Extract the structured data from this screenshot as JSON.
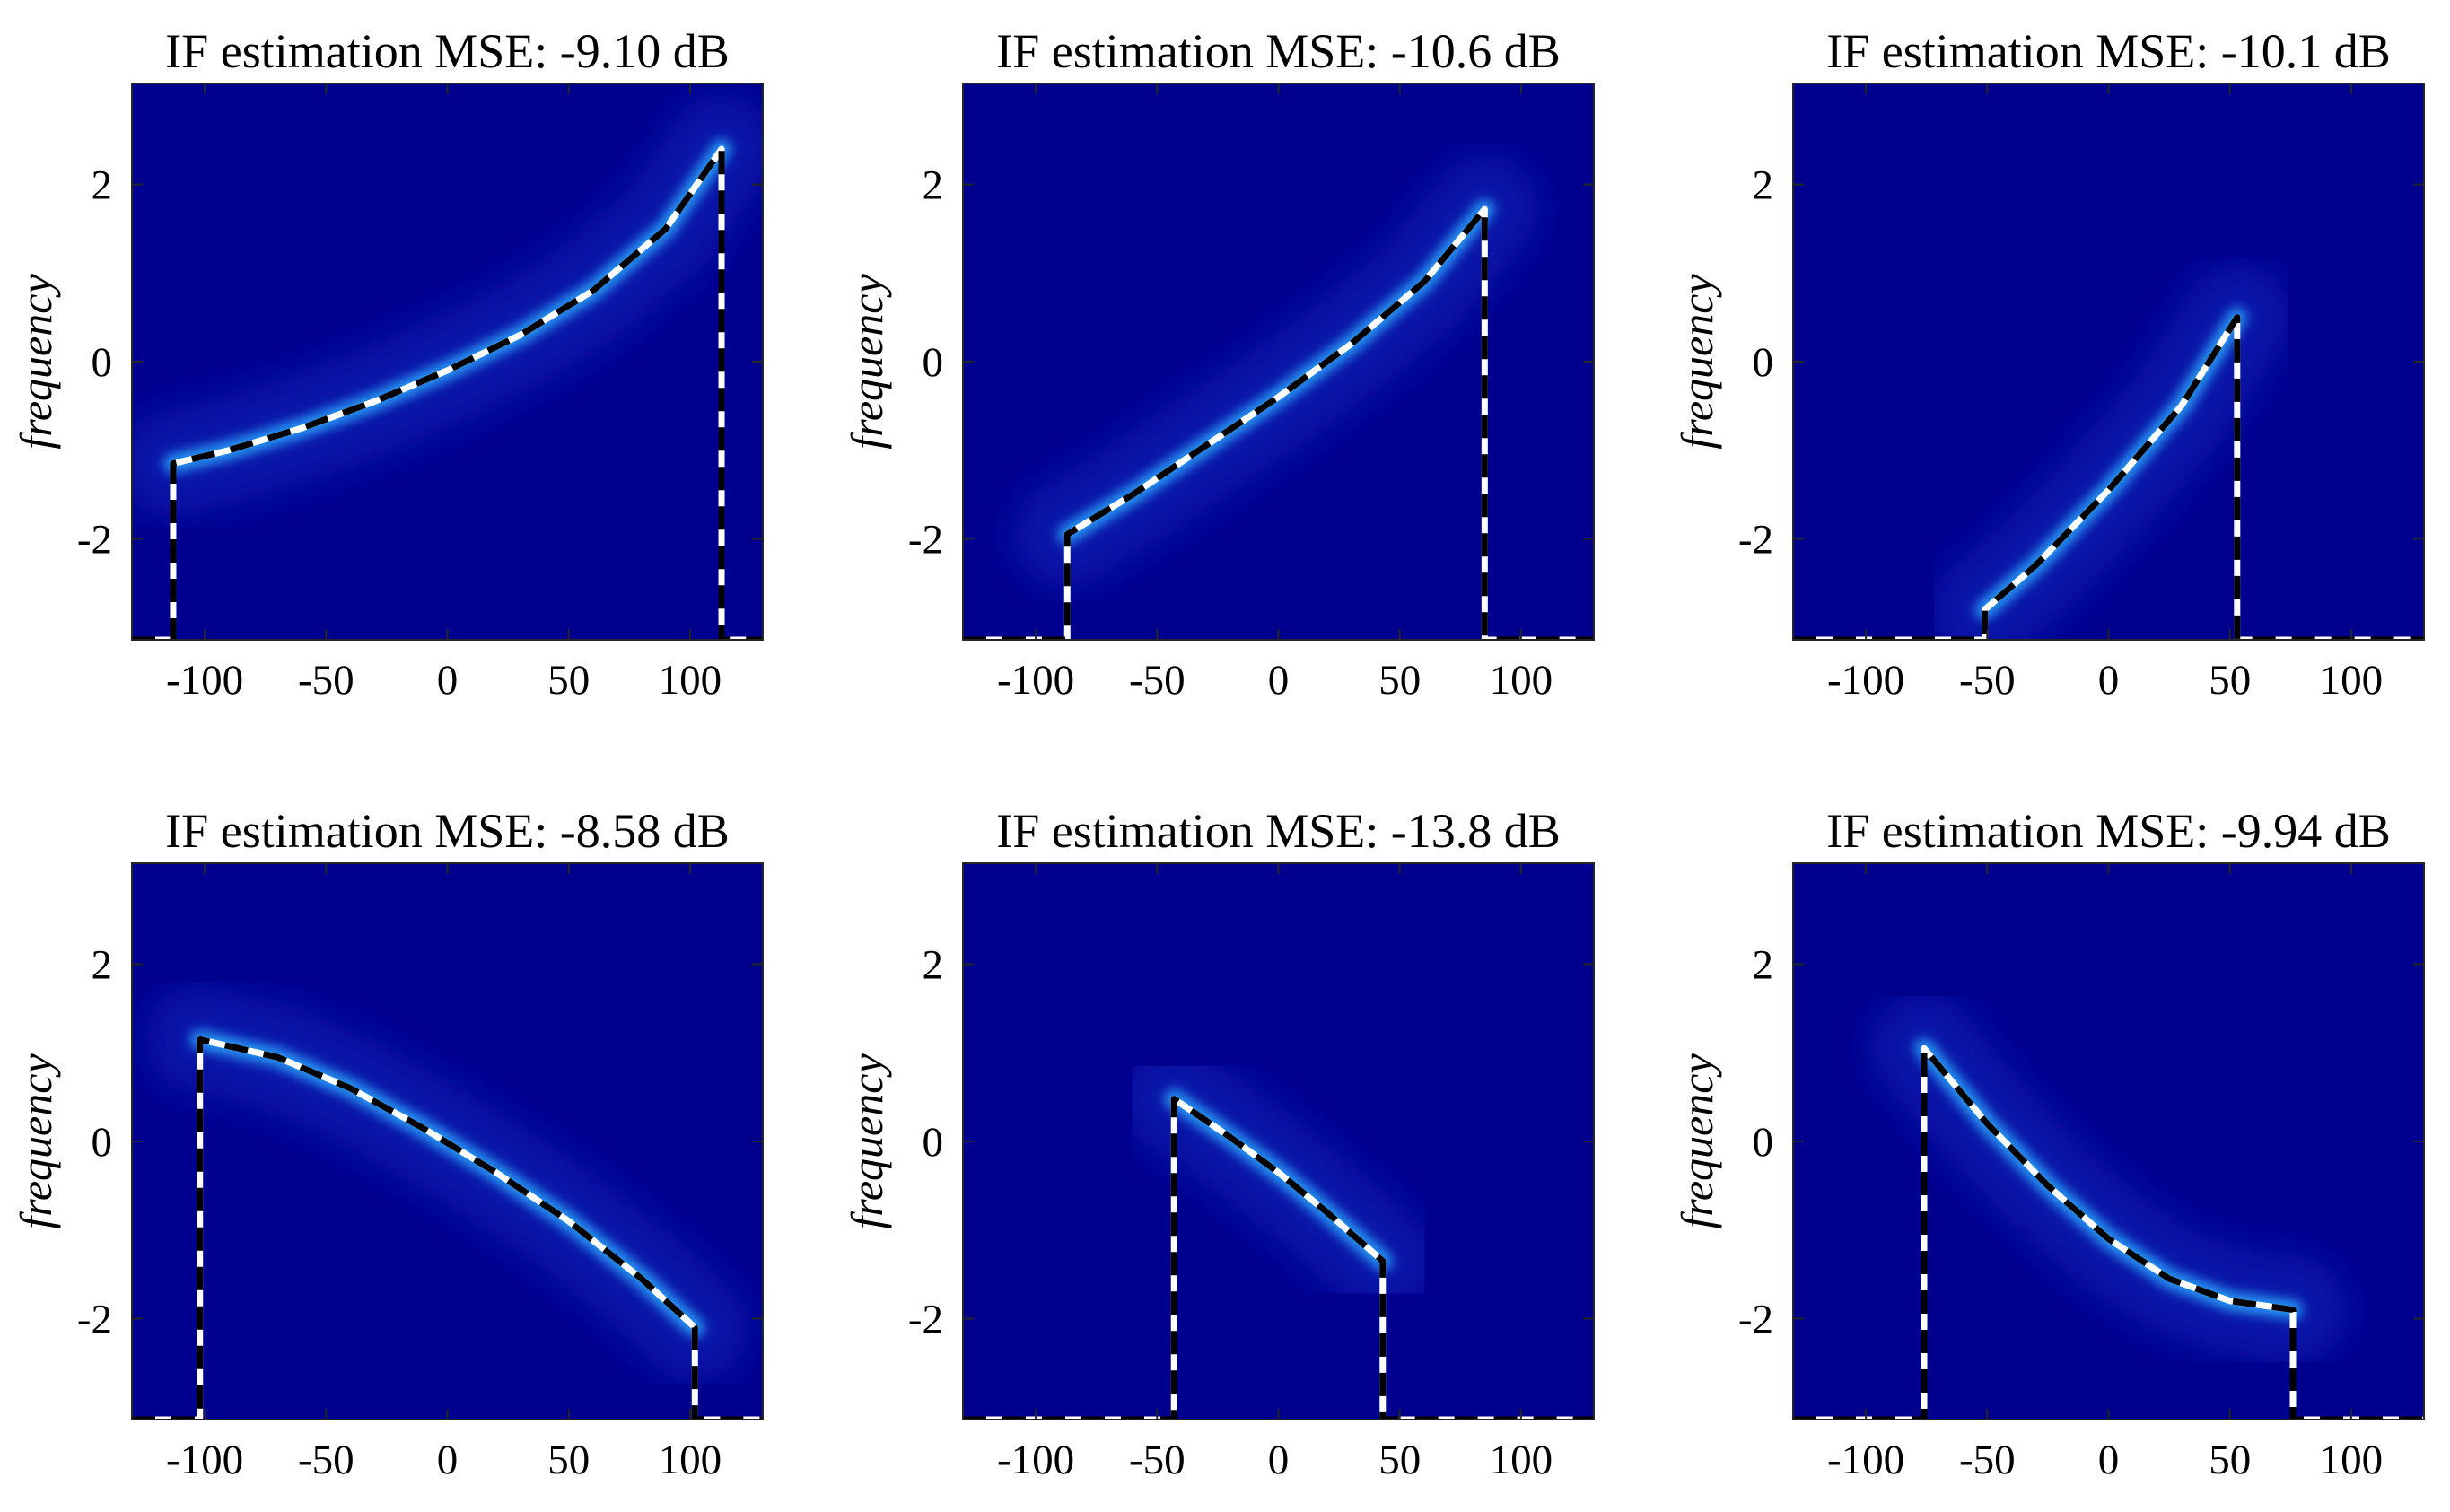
{
  "chart_data": [
    {
      "type": "line",
      "title": "IF estimation MSE: -9.10 dB",
      "xlabel": "",
      "ylabel": "frequency",
      "xlim": [
        -130,
        130
      ],
      "ylim": [
        -3.14,
        3.14
      ],
      "xticks": [
        "-100",
        "-50",
        "0",
        "50",
        "100"
      ],
      "yticks": [
        "-2",
        "0",
        "2"
      ],
      "background_color": "#00008f",
      "series": [
        {
          "name": "estimated IF",
          "style": "black-white dashed",
          "x": [
            -130,
            -113,
            -113,
            -90,
            -60,
            -30,
            0,
            30,
            60,
            90,
            113,
            113,
            130
          ],
          "y": [
            -3.14,
            -3.14,
            -1.15,
            -1.0,
            -0.75,
            -0.45,
            -0.1,
            0.3,
            0.8,
            1.5,
            2.4,
            -3.14,
            -3.14
          ]
        }
      ]
    },
    {
      "type": "line",
      "title": "IF estimation MSE: -10.6 dB",
      "xlabel": "",
      "ylabel": "frequency",
      "xlim": [
        -130,
        130
      ],
      "ylim": [
        -3.14,
        3.14
      ],
      "xticks": [
        "-100",
        "-50",
        "0",
        "50",
        "100"
      ],
      "yticks": [
        "-2",
        "0",
        "2"
      ],
      "background_color": "#00008f",
      "series": [
        {
          "name": "estimated IF",
          "style": "black-white dashed",
          "x": [
            -130,
            -87,
            -87,
            -60,
            -30,
            0,
            30,
            60,
            85,
            85,
            130
          ],
          "y": [
            -3.14,
            -3.14,
            -1.95,
            -1.5,
            -0.95,
            -0.4,
            0.2,
            0.9,
            1.72,
            -3.14,
            -3.14
          ]
        }
      ]
    },
    {
      "type": "line",
      "title": "IF estimation MSE: -10.1 dB",
      "xlabel": "",
      "ylabel": "frequency",
      "xlim": [
        -130,
        130
      ],
      "ylim": [
        -3.14,
        3.14
      ],
      "xticks": [
        "-100",
        "-50",
        "0",
        "50",
        "100"
      ],
      "yticks": [
        "-2",
        "0",
        "2"
      ],
      "background_color": "#00008f",
      "series": [
        {
          "name": "estimated IF",
          "style": "black-white dashed",
          "x": [
            -130,
            -51,
            -51,
            -30,
            0,
            30,
            53,
            53,
            130
          ],
          "y": [
            -3.14,
            -3.14,
            -2.8,
            -2.3,
            -1.45,
            -0.5,
            0.5,
            -3.14,
            -3.14
          ]
        }
      ]
    },
    {
      "type": "line",
      "title": "IF estimation MSE: -8.58 dB",
      "xlabel": "",
      "ylabel": "frequency",
      "xlim": [
        -130,
        130
      ],
      "ylim": [
        -3.14,
        3.14
      ],
      "xticks": [
        "-100",
        "-50",
        "0",
        "50",
        "100"
      ],
      "yticks": [
        "-2",
        "0",
        "2"
      ],
      "background_color": "#00008f",
      "series": [
        {
          "name": "estimated IF",
          "style": "black-white dashed",
          "x": [
            -130,
            -102,
            -102,
            -70,
            -40,
            -10,
            20,
            50,
            80,
            102,
            102,
            130
          ],
          "y": [
            -3.14,
            -3.14,
            1.15,
            0.95,
            0.6,
            0.15,
            -0.35,
            -0.9,
            -1.55,
            -2.1,
            -3.14,
            -3.14
          ]
        }
      ]
    },
    {
      "type": "line",
      "title": "IF estimation MSE: -13.8 dB",
      "xlabel": "",
      "ylabel": "frequency",
      "xlim": [
        -130,
        130
      ],
      "ylim": [
        -3.14,
        3.14
      ],
      "xticks": [
        "-100",
        "-50",
        "0",
        "50",
        "100"
      ],
      "yticks": [
        "-2",
        "0",
        "2"
      ],
      "background_color": "#00008f",
      "series": [
        {
          "name": "estimated IF",
          "style": "black-white dashed",
          "x": [
            -130,
            -43,
            -43,
            -20,
            0,
            20,
            43,
            43,
            130
          ],
          "y": [
            -3.14,
            -3.14,
            0.48,
            0.05,
            -0.35,
            -0.8,
            -1.35,
            -3.14,
            -3.14
          ]
        }
      ]
    },
    {
      "type": "line",
      "title": "IF estimation MSE: -9.94 dB",
      "xlabel": "",
      "ylabel": "frequency",
      "xlim": [
        -130,
        130
      ],
      "ylim": [
        -3.14,
        3.14
      ],
      "xticks": [
        "-100",
        "-50",
        "0",
        "50",
        "100"
      ],
      "yticks": [
        "-2",
        "0",
        "2"
      ],
      "background_color": "#00008f",
      "series": [
        {
          "name": "estimated IF",
          "style": "black-white dashed",
          "x": [
            -130,
            -76,
            -76,
            -50,
            -25,
            0,
            25,
            50,
            76,
            76,
            130
          ],
          "y": [
            -3.14,
            -3.14,
            1.05,
            0.2,
            -0.5,
            -1.1,
            -1.55,
            -1.8,
            -1.9,
            -3.14,
            -3.14
          ]
        }
      ]
    }
  ]
}
